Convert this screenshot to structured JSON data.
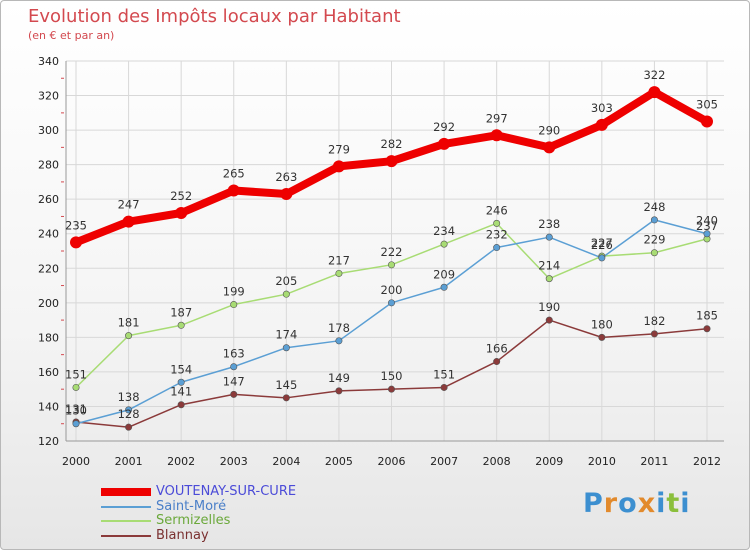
{
  "title": "Evolution des Impôts locaux par Habitant",
  "subtitle": "(en € et par an)",
  "logo": {
    "text": "Proxiti",
    "letters": [
      {
        "ch": "P",
        "color": "#3c8fd0"
      },
      {
        "ch": "r",
        "color": "#e28a2c"
      },
      {
        "ch": "o",
        "color": "#3c8fd0"
      },
      {
        "ch": "x",
        "color": "#e28a2c"
      },
      {
        "ch": "i",
        "color": "#3c8fd0"
      },
      {
        "ch": "t",
        "color": "#8bbf3c"
      },
      {
        "ch": "i",
        "color": "#3c8fd0"
      }
    ]
  },
  "chart_data": {
    "type": "line",
    "title": "Evolution des Impôts locaux par Habitant",
    "subtitle": "(en € et par an)",
    "xlabel": "",
    "ylabel": "",
    "x": [
      "2000",
      "2001",
      "2002",
      "2003",
      "2004",
      "2005",
      "2006",
      "2007",
      "2008",
      "2009",
      "2010",
      "2011",
      "2012"
    ],
    "ylim": [
      120,
      340
    ],
    "yticks": [
      120,
      140,
      160,
      180,
      200,
      220,
      240,
      260,
      280,
      300,
      320,
      340
    ],
    "grid": true,
    "legend_position": "bottom-left",
    "series": [
      {
        "name": "VOUTENAY-SUR-CURE",
        "color": "#ee0000",
        "labelColor": "#4b4bd8",
        "values": [
          235,
          247,
          252,
          265,
          263,
          279,
          282,
          292,
          297,
          290,
          303,
          322,
          305
        ]
      },
      {
        "name": "Saint-Moré",
        "color": "#5b9fd4",
        "labelColor": "#4a7fc8",
        "values": [
          130,
          138,
          154,
          163,
          174,
          178,
          200,
          209,
          232,
          238,
          226,
          248,
          240
        ]
      },
      {
        "name": "Sermizelles",
        "color": "#a8dc74",
        "labelColor": "#6aa83a",
        "values": [
          151,
          181,
          187,
          199,
          205,
          217,
          222,
          234,
          246,
          214,
          227,
          229,
          237
        ]
      },
      {
        "name": "Blannay",
        "color": "#8b3a3a",
        "labelColor": "#7a3030",
        "values": [
          131,
          128,
          141,
          147,
          145,
          149,
          150,
          151,
          166,
          190,
          180,
          182,
          185
        ]
      }
    ]
  }
}
